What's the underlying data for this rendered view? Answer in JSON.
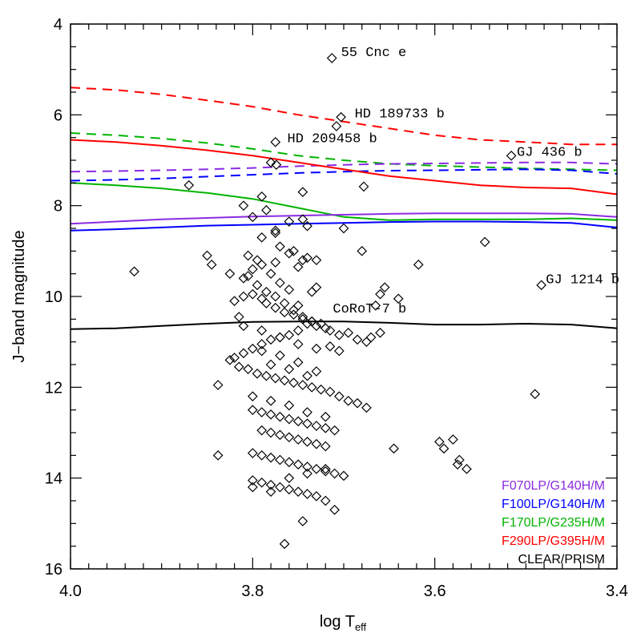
{
  "chart_data": {
    "type": "scatter",
    "xlabel_main": "log T",
    "xlabel_sub": "eff",
    "ylabel": "J−band magnitude",
    "xlim": [
      4.0,
      3.4
    ],
    "ylim": [
      16,
      4
    ],
    "xticks": [
      {
        "value": 4.0,
        "label": "4.0"
      },
      {
        "value": 3.8,
        "label": "3.8"
      },
      {
        "value": 3.6,
        "label": "3.6"
      },
      {
        "value": 3.4,
        "label": "3.4"
      }
    ],
    "yticks": [
      {
        "value": 4,
        "label": "4"
      },
      {
        "value": 6,
        "label": "6"
      },
      {
        "value": 8,
        "label": "8"
      },
      {
        "value": 10,
        "label": "10"
      },
      {
        "value": 12,
        "label": "12"
      },
      {
        "value": 14,
        "label": "14"
      },
      {
        "value": 16,
        "label": "16"
      }
    ],
    "annotations": [
      {
        "text": "55 Cnc e",
        "x": 3.703,
        "y": 4.6
      },
      {
        "text": "HD 189733 b",
        "x": 3.688,
        "y": 5.95
      },
      {
        "text": "HD 209458 b",
        "x": 3.762,
        "y": 6.5
      },
      {
        "text": "GJ 436 b",
        "x": 3.51,
        "y": 6.8
      },
      {
        "text": "GJ 1214 b",
        "x": 3.478,
        "y": 9.6
      },
      {
        "text": "CoRoT-7 b",
        "x": 3.712,
        "y": 10.25
      }
    ],
    "legend": [
      {
        "label": "F070LP/G140H/M",
        "color": "#8a2be2"
      },
      {
        "label": "F100LP/G140H/M",
        "color": "#0000ff"
      },
      {
        "label": "F170LP/G235H/M",
        "color": "#00b400"
      },
      {
        "label": "F290LP/G395H/M",
        "color": "#ff0000"
      },
      {
        "label": "CLEAR/PRISM",
        "color": "#000000"
      }
    ],
    "series": [
      {
        "name": "F290LP/G395H/M saturation",
        "style": "dashed",
        "color": "#ff0000",
        "x": [
          4.0,
          3.95,
          3.9,
          3.85,
          3.8,
          3.75,
          3.7,
          3.65,
          3.6,
          3.55,
          3.5,
          3.45,
          3.4
        ],
        "y": [
          5.4,
          5.45,
          5.55,
          5.68,
          5.82,
          6.0,
          6.15,
          6.3,
          6.45,
          6.55,
          6.6,
          6.65,
          6.65
        ]
      },
      {
        "name": "F170LP/G235H/M saturation",
        "style": "dashed",
        "color": "#00b400",
        "x": [
          4.0,
          3.95,
          3.9,
          3.85,
          3.8,
          3.75,
          3.7,
          3.65,
          3.6,
          3.55,
          3.5,
          3.45,
          3.4
        ],
        "y": [
          6.4,
          6.45,
          6.52,
          6.62,
          6.75,
          6.9,
          7.0,
          7.08,
          7.12,
          7.15,
          7.18,
          7.2,
          7.22
        ]
      },
      {
        "name": "F070LP/G140H/M saturation",
        "style": "dashed",
        "color": "#8a2be2",
        "x": [
          4.0,
          3.95,
          3.9,
          3.85,
          3.8,
          3.75,
          3.7,
          3.65,
          3.6,
          3.55,
          3.5,
          3.45,
          3.4
        ],
        "y": [
          7.25,
          7.24,
          7.22,
          7.2,
          7.17,
          7.13,
          7.1,
          7.08,
          7.07,
          7.06,
          7.05,
          7.05,
          7.08
        ]
      },
      {
        "name": "F100LP/G140H/M saturation",
        "style": "dashed",
        "color": "#0000ff",
        "x": [
          4.0,
          3.95,
          3.9,
          3.85,
          3.8,
          3.75,
          3.7,
          3.65,
          3.6,
          3.55,
          3.5,
          3.45,
          3.4
        ],
        "y": [
          7.45,
          7.43,
          7.4,
          7.36,
          7.32,
          7.28,
          7.25,
          7.23,
          7.22,
          7.21,
          7.2,
          7.22,
          7.3
        ]
      },
      {
        "name": "F290LP/G395H/M limit",
        "style": "solid",
        "color": "#ff0000",
        "x": [
          4.0,
          3.95,
          3.9,
          3.85,
          3.8,
          3.75,
          3.7,
          3.65,
          3.6,
          3.55,
          3.5,
          3.45,
          3.4
        ],
        "y": [
          6.55,
          6.6,
          6.68,
          6.78,
          6.9,
          7.05,
          7.2,
          7.35,
          7.45,
          7.55,
          7.6,
          7.62,
          7.75
        ]
      },
      {
        "name": "F170LP/G235H/M limit",
        "style": "solid",
        "color": "#00b400",
        "x": [
          4.0,
          3.95,
          3.9,
          3.85,
          3.8,
          3.75,
          3.7,
          3.65,
          3.6,
          3.55,
          3.5,
          3.45,
          3.4
        ],
        "y": [
          7.5,
          7.55,
          7.62,
          7.72,
          7.85,
          8.05,
          8.25,
          8.32,
          8.3,
          8.3,
          8.3,
          8.28,
          8.32
        ]
      },
      {
        "name": "F070LP/G140H/M limit",
        "style": "solid",
        "color": "#8a2be2",
        "x": [
          4.0,
          3.95,
          3.9,
          3.85,
          3.8,
          3.75,
          3.7,
          3.65,
          3.6,
          3.55,
          3.5,
          3.45,
          3.4
        ],
        "y": [
          8.4,
          8.35,
          8.3,
          8.27,
          8.24,
          8.22,
          8.2,
          8.18,
          8.17,
          8.17,
          8.17,
          8.18,
          8.25
        ]
      },
      {
        "name": "F100LP/G140H/M limit",
        "style": "solid",
        "color": "#0000ff",
        "x": [
          4.0,
          3.95,
          3.9,
          3.85,
          3.8,
          3.75,
          3.7,
          3.65,
          3.6,
          3.55,
          3.5,
          3.45,
          3.4
        ],
        "y": [
          8.55,
          8.52,
          8.48,
          8.44,
          8.42,
          8.4,
          8.38,
          8.36,
          8.35,
          8.35,
          8.36,
          8.38,
          8.48
        ]
      },
      {
        "name": "CLEAR/PRISM limit",
        "style": "solid",
        "color": "#000000",
        "x": [
          4.0,
          3.95,
          3.9,
          3.85,
          3.8,
          3.75,
          3.7,
          3.65,
          3.6,
          3.55,
          3.5,
          3.45,
          3.4
        ],
        "y": [
          10.72,
          10.7,
          10.65,
          10.6,
          10.56,
          10.55,
          10.55,
          10.58,
          10.62,
          10.62,
          10.6,
          10.62,
          10.7
        ]
      }
    ],
    "points": {
      "x": [
        3.713,
        3.703,
        3.708,
        3.775,
        3.78,
        3.774,
        3.516,
        3.87,
        3.79,
        3.745,
        3.678,
        3.785,
        3.93,
        3.545,
        3.618,
        3.483,
        3.49,
        3.838,
        3.838,
        3.665,
        3.655,
        3.66,
        3.64,
        3.645,
        3.58,
        3.595,
        3.59,
        3.575,
        3.573,
        3.565,
        3.81,
        3.8,
        3.76,
        3.74,
        3.7,
        3.68,
        3.745,
        3.775,
        3.79,
        3.8,
        3.77,
        3.81,
        3.805,
        3.795,
        3.775,
        3.78,
        3.75,
        3.755,
        3.745,
        3.73,
        3.735,
        3.76,
        3.815,
        3.82,
        3.81,
        3.8,
        3.79,
        3.785,
        3.775,
        3.765,
        3.755,
        3.745,
        3.735,
        3.725,
        3.715,
        3.705,
        3.695,
        3.685,
        3.675,
        3.67,
        3.66,
        3.72,
        3.73,
        3.74,
        3.75,
        3.76,
        3.77,
        3.78,
        3.79,
        3.8,
        3.81,
        3.82,
        3.825,
        3.815,
        3.805,
        3.795,
        3.785,
        3.775,
        3.765,
        3.755,
        3.745,
        3.735,
        3.725,
        3.715,
        3.705,
        3.695,
        3.685,
        3.675,
        3.8,
        3.79,
        3.78,
        3.77,
        3.76,
        3.75,
        3.74,
        3.73,
        3.72,
        3.71,
        3.79,
        3.78,
        3.77,
        3.76,
        3.75,
        3.74,
        3.73,
        3.72,
        3.8,
        3.79,
        3.78,
        3.77,
        3.76,
        3.75,
        3.74,
        3.73,
        3.72,
        3.71,
        3.7,
        3.8,
        3.79,
        3.78,
        3.77,
        3.76,
        3.75,
        3.74,
        3.73,
        3.72,
        3.71,
        3.8,
        3.78,
        3.76,
        3.74,
        3.72,
        3.79,
        3.77,
        3.75,
        3.73,
        3.81,
        3.79,
        3.77,
        3.75,
        3.73,
        3.78,
        3.76,
        3.74,
        3.8,
        3.78,
        3.76,
        3.74,
        3.72,
        3.85,
        3.845,
        3.825,
        3.805,
        3.795,
        3.785,
        3.775,
        3.765,
        3.755,
        3.745,
        3.735,
        3.715,
        3.705,
        3.765,
        3.745,
        3.775,
        3.79,
        3.77,
        3.76,
        3.74,
        3.73,
        3.75
      ],
      "y": [
        4.75,
        6.05,
        6.25,
        6.6,
        7.05,
        7.1,
        6.9,
        7.55,
        7.8,
        7.7,
        7.58,
        8.1,
        9.45,
        8.8,
        9.3,
        9.75,
        12.15,
        11.95,
        13.5,
        10.2,
        9.8,
        9.95,
        10.05,
        13.35,
        13.15,
        13.2,
        13.35,
        13.7,
        13.6,
        13.8,
        8.0,
        8.25,
        8.35,
        8.45,
        8.5,
        9.0,
        8.3,
        8.6,
        9.3,
        9.4,
        9.7,
        9.6,
        9.1,
        9.2,
        9.25,
        9.5,
        9.35,
        9.0,
        9.2,
        9.8,
        9.9,
        9.85,
        10.45,
        10.1,
        10.0,
        9.95,
        10.05,
        10.15,
        10.25,
        10.35,
        10.4,
        10.5,
        10.55,
        10.6,
        10.75,
        10.85,
        10.8,
        10.95,
        11.0,
        10.9,
        10.8,
        10.7,
        10.65,
        10.6,
        10.75,
        10.85,
        10.9,
        10.95,
        11.05,
        11.15,
        11.25,
        11.35,
        11.4,
        11.55,
        11.6,
        11.7,
        11.75,
        11.8,
        11.85,
        11.9,
        11.95,
        12.0,
        12.05,
        12.1,
        12.2,
        12.3,
        12.35,
        12.45,
        12.5,
        12.55,
        12.6,
        12.65,
        12.7,
        12.75,
        12.8,
        12.85,
        12.9,
        12.95,
        12.95,
        13.0,
        13.05,
        13.1,
        13.15,
        13.2,
        13.25,
        13.3,
        13.45,
        13.5,
        13.55,
        13.6,
        13.65,
        13.7,
        13.75,
        13.8,
        13.85,
        13.9,
        13.95,
        14.05,
        14.1,
        14.15,
        14.2,
        14.25,
        14.3,
        14.35,
        14.4,
        14.5,
        14.7,
        14.2,
        14.3,
        14.0,
        13.9,
        13.8,
        11.2,
        11.3,
        11.45,
        11.65,
        10.65,
        10.75,
        10.9,
        11.05,
        11.15,
        11.5,
        11.6,
        11.75,
        12.2,
        12.3,
        12.4,
        12.55,
        12.65,
        9.1,
        9.3,
        9.5,
        9.55,
        9.75,
        9.9,
        10.0,
        10.15,
        10.3,
        10.45,
        10.55,
        11.1,
        11.2,
        15.45,
        14.95,
        8.55,
        8.7,
        8.9,
        9.05,
        9.15,
        9.2,
        10.2
      ]
    }
  }
}
